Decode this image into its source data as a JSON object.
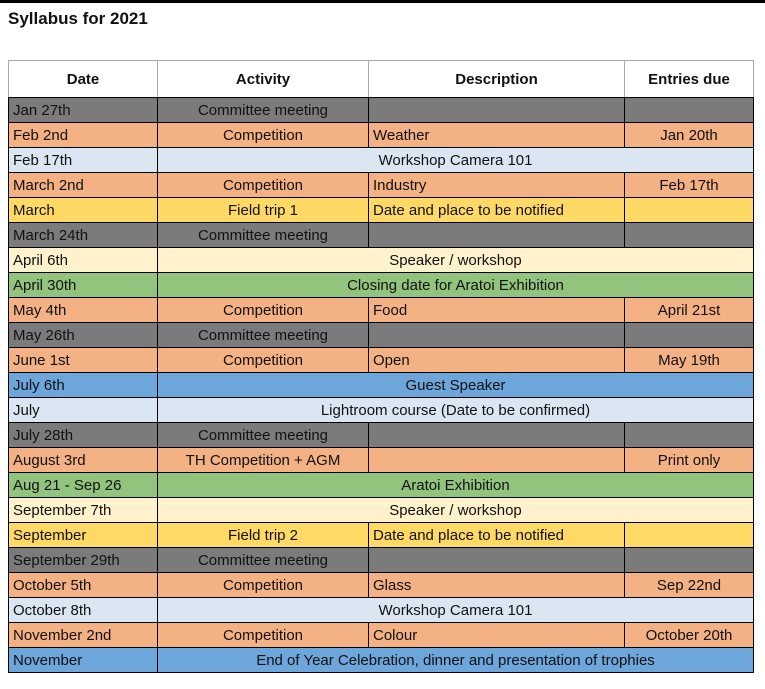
{
  "page": {
    "title": "Syllabus for 2021"
  },
  "colors": {
    "gray": "#7b7b7b",
    "orange": "#f4b183",
    "lightblue": "#dae7f3",
    "yellow": "#ffd966",
    "cream": "#fff2cc",
    "green": "#93c47d",
    "blue": "#6ca6db",
    "header_border": "#ababab",
    "grid_border": "#000000"
  },
  "table": {
    "headers": [
      "Date",
      "Activity",
      "Description",
      "Entries due"
    ],
    "rows": [
      {
        "date": "Jan 27th",
        "activity": "Committee meeting",
        "description": "",
        "entries_due": "",
        "color": "gray"
      },
      {
        "date": "Feb 2nd",
        "activity": "Competition",
        "description": "Weather",
        "entries_due": "Jan 20th",
        "color": "orange"
      },
      {
        "date": "Feb 17th",
        "merged": "Workshop Camera 101",
        "color": "lightblue"
      },
      {
        "date": "March 2nd",
        "activity": "Competition",
        "description": "Industry",
        "entries_due": "Feb 17th",
        "color": "orange"
      },
      {
        "date": "March",
        "activity": "Field trip 1",
        "description": "Date and place to be notified",
        "entries_due": "",
        "color": "yellow"
      },
      {
        "date": "March 24th",
        "activity": "Committee meeting",
        "description": "",
        "entries_due": "",
        "color": "gray"
      },
      {
        "date": "April 6th",
        "merged": "Speaker / workshop",
        "color": "cream"
      },
      {
        "date": "April 30th",
        "merged": "Closing date for Aratoi Exhibition",
        "color": "green"
      },
      {
        "date": "May 4th",
        "activity": "Competition",
        "description": "Food",
        "entries_due": "April 21st",
        "color": "orange"
      },
      {
        "date": "May 26th",
        "activity": "Committee meeting",
        "description": "",
        "entries_due": "",
        "color": "gray"
      },
      {
        "date": "June 1st",
        "activity": "Competition",
        "description": "Open",
        "entries_due": "May 19th",
        "color": "orange"
      },
      {
        "date": "July 6th",
        "merged": "Guest Speaker",
        "color": "blue"
      },
      {
        "date": "July",
        "merged": "Lightroom course (Date to be confirmed)",
        "color": "lightblue"
      },
      {
        "date": "July 28th",
        "activity": "Committee meeting",
        "description": "",
        "entries_due": "",
        "color": "gray"
      },
      {
        "date": "August 3rd",
        "activity": "TH Competition + AGM",
        "description": "",
        "entries_due": "Print only",
        "color": "orange"
      },
      {
        "date": "Aug 21 - Sep 26",
        "merged": "Aratoi Exhibition",
        "color": "green"
      },
      {
        "date": "September 7th",
        "merged": "Speaker / workshop",
        "color": "cream"
      },
      {
        "date": "September",
        "activity": "Field trip 2",
        "description": "Date and place to be notified",
        "entries_due": "",
        "color": "yellow"
      },
      {
        "date": "September 29th",
        "activity": "Committee meeting",
        "description": "",
        "entries_due": "",
        "color": "gray"
      },
      {
        "date": "October 5th",
        "activity": "Competition",
        "description": "Glass",
        "entries_due": "Sep 22nd",
        "color": "orange"
      },
      {
        "date": "October 8th",
        "merged": "Workshop Camera 101",
        "color": "lightblue"
      },
      {
        "date": "November 2nd",
        "activity": "Competition",
        "description": "Colour",
        "entries_due": "October 20th",
        "color": "orange"
      },
      {
        "date": "November",
        "merged": "End of Year Celebration, dinner and presentation of trophies",
        "color": "blue"
      }
    ]
  }
}
